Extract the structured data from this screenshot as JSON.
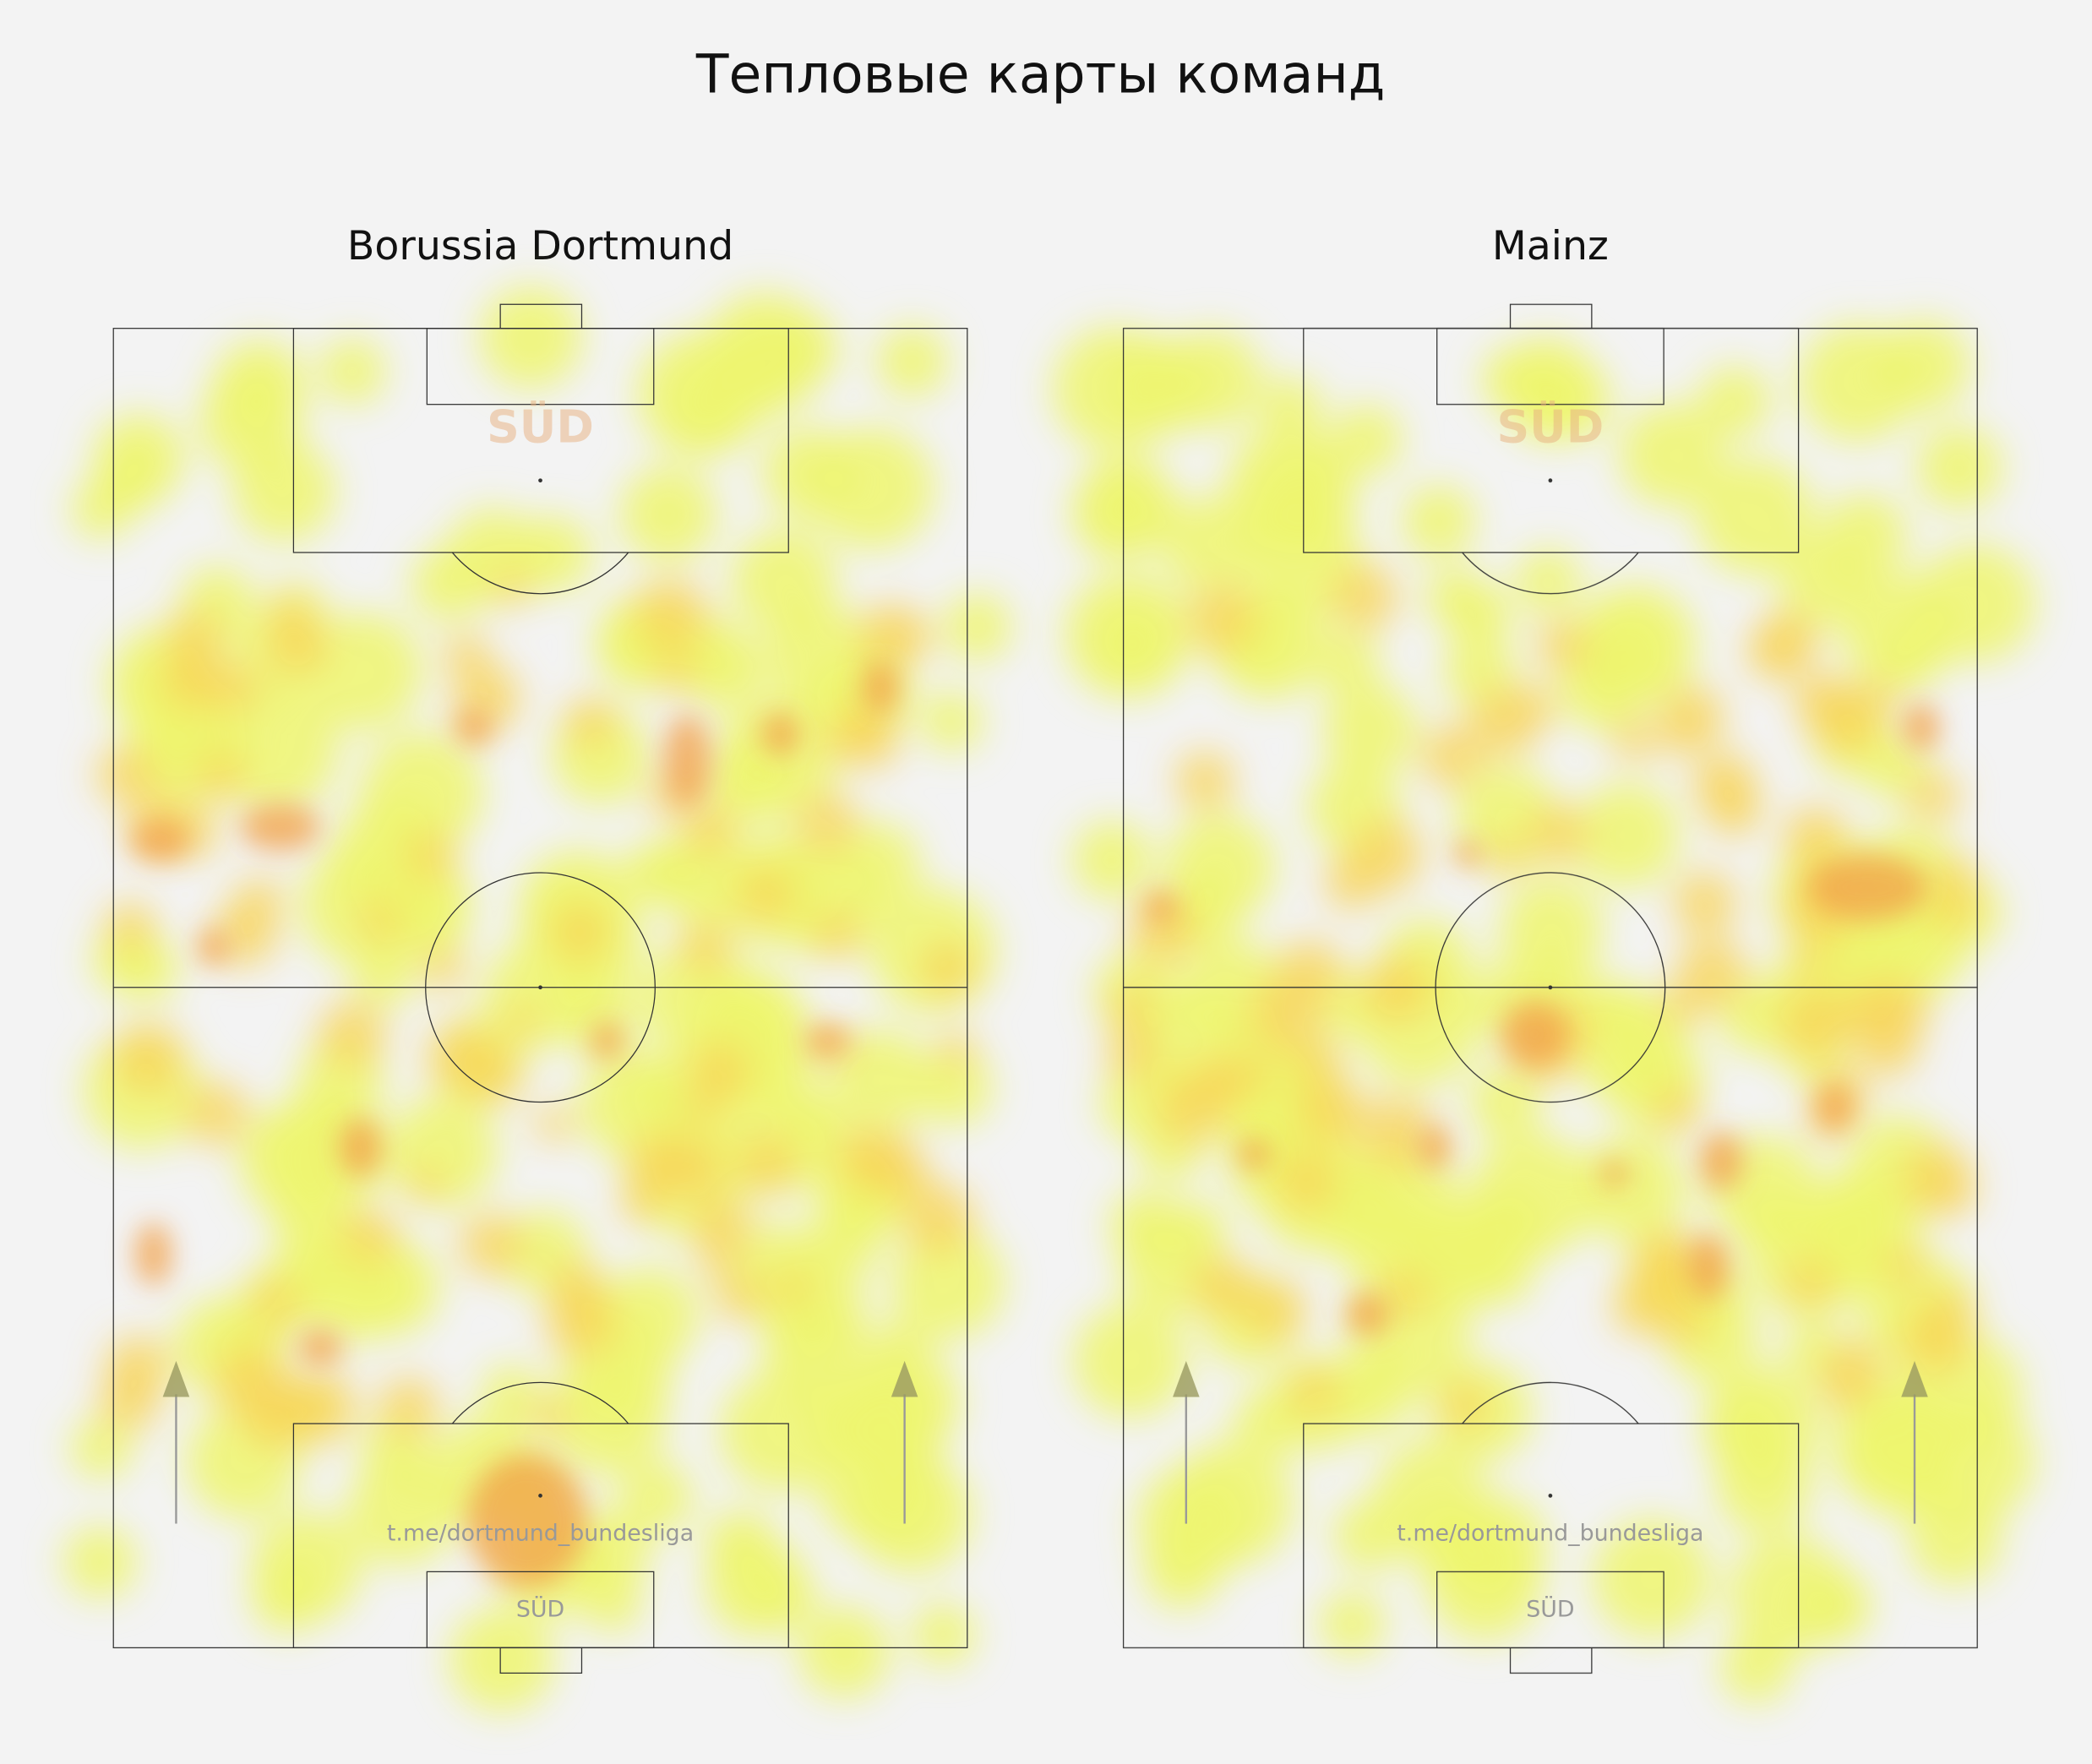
{
  "title": "Тепловые карты команд",
  "panels": [
    {
      "title": "Borussia Dortmund",
      "url": "t.me/dortmund_bundesliga",
      "stand": "SÜD"
    },
    {
      "title": "Mainz",
      "url": "t.me/dortmund_bundesliga",
      "stand": "SÜD"
    }
  ]
}
